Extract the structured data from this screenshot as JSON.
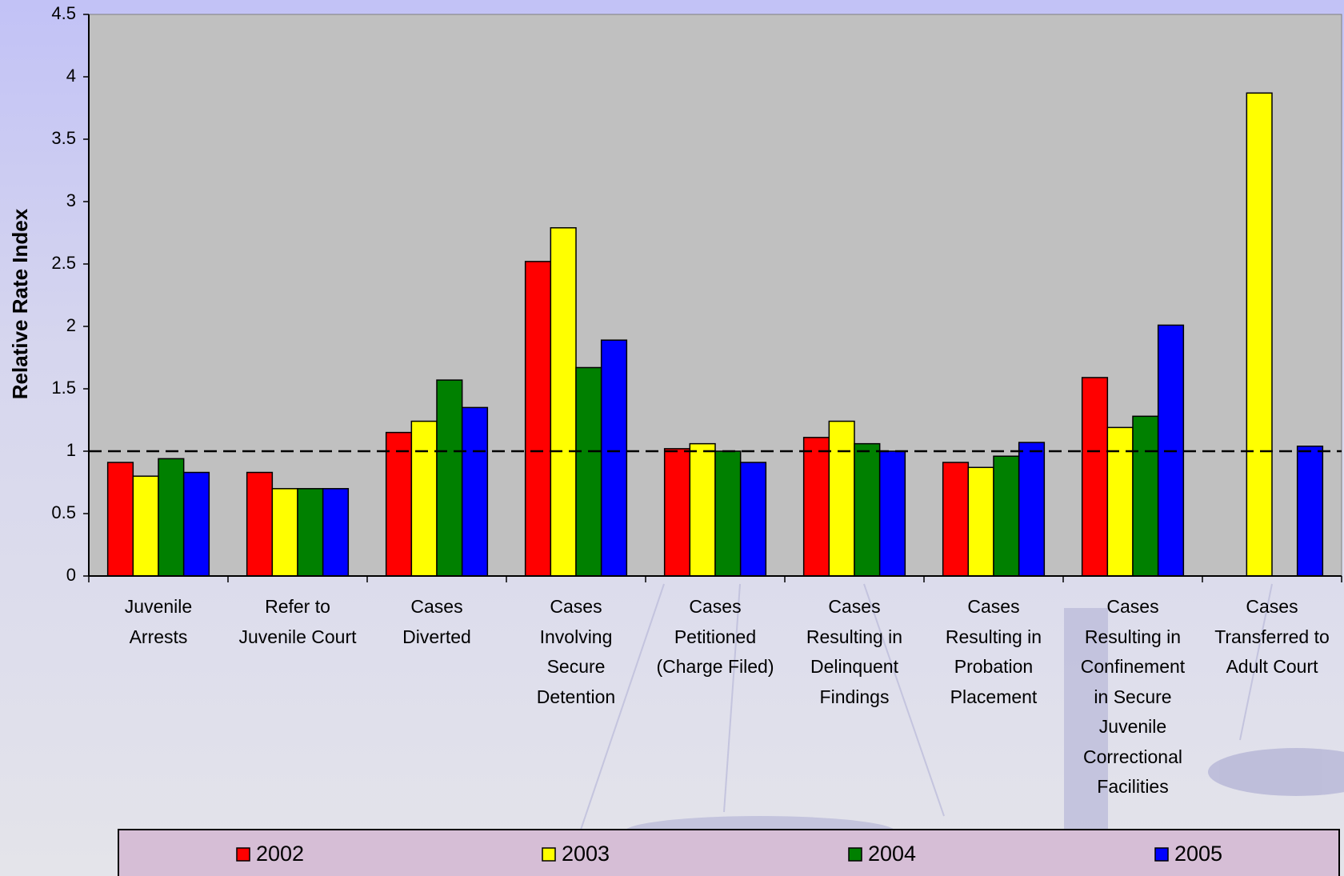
{
  "chart_data": {
    "type": "bar",
    "y_label": "Relative Rate Index",
    "categories": [
      "Juvenile\nArrests",
      "Refer to\nJuvenile Court",
      "Cases\nDiverted",
      "Cases\nInvolving\nSecure\nDetention",
      "Cases\nPetitioned\n(Charge Filed)",
      "Cases\nResulting in\nDelinquent\nFindings",
      "Cases\nResulting in\nProbation\nPlacement",
      "Cases\nResulting in\nConfinement\nin Secure\nJuvenile\nCorrectional\nFacilities",
      "Cases\nTransferred to\nAdult Court"
    ],
    "series": [
      {
        "name": "2002",
        "color": "#ff0000",
        "values": [
          0.91,
          0.83,
          1.15,
          2.52,
          1.02,
          1.11,
          0.91,
          1.59,
          null
        ]
      },
      {
        "name": "2003",
        "color": "#ffff00",
        "values": [
          0.8,
          0.7,
          1.24,
          2.79,
          1.06,
          1.24,
          0.87,
          1.19,
          3.87
        ]
      },
      {
        "name": "2004",
        "color": "#008000",
        "values": [
          0.94,
          0.7,
          1.57,
          1.67,
          1.0,
          1.06,
          0.96,
          1.28,
          null
        ]
      },
      {
        "name": "2005",
        "color": "#0000ff",
        "values": [
          0.83,
          0.7,
          1.35,
          1.89,
          0.91,
          1.0,
          1.07,
          2.01,
          1.04
        ]
      }
    ],
    "ylim": [
      0,
      4.5
    ],
    "yticks": [
      0,
      0.5,
      1,
      1.5,
      2,
      2.5,
      3,
      3.5,
      4,
      4.5
    ],
    "reference_line": 1,
    "legend": "bottom"
  }
}
